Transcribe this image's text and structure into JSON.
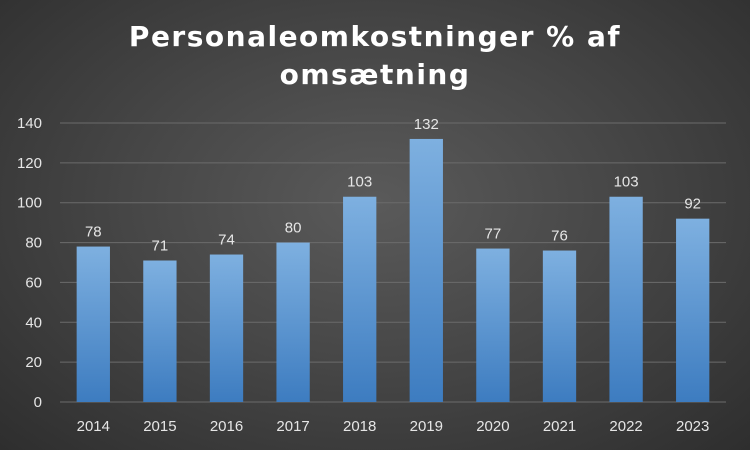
{
  "chart_data": {
    "type": "bar",
    "title": "Personaleomkostninger % af omsætning",
    "title_lines": [
      "Personaleomkostninger % af",
      "omsætning"
    ],
    "xlabel": "",
    "ylabel": "",
    "categories": [
      "2014",
      "2015",
      "2016",
      "2017",
      "2018",
      "2019",
      "2020",
      "2021",
      "2022",
      "2023"
    ],
    "values": [
      78,
      71,
      74,
      80,
      103,
      132,
      77,
      76,
      103,
      92
    ],
    "ylim": [
      0,
      140
    ],
    "yticks": [
      0,
      20,
      40,
      60,
      80,
      100,
      120,
      140
    ],
    "grid": true,
    "legend": "none",
    "data_labels": true,
    "colors": {
      "bar_top": "#7eb0e0",
      "bar_bottom": "#3d7cc0",
      "grid": "#6b6b6b",
      "text": "#e6e6e6"
    }
  }
}
